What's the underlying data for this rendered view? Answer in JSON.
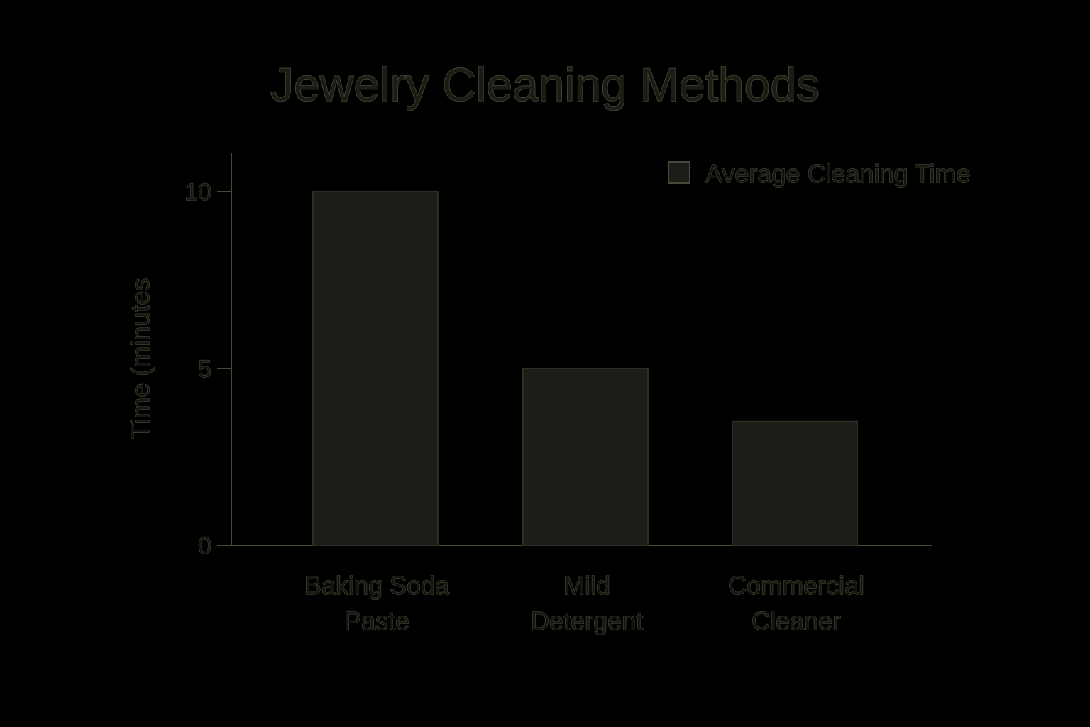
{
  "chart_data": {
    "type": "bar",
    "title": "Jewelry Cleaning Methods",
    "categories": [
      [
        "Baking Soda",
        "Paste"
      ],
      [
        "Mild",
        "Detergent"
      ],
      [
        "Commercial",
        "Cleaner"
      ]
    ],
    "series": [
      {
        "name": "Average Cleaning Time",
        "values": [
          10,
          5,
          3.5
        ]
      }
    ],
    "xlabel": "",
    "ylabel": "Time (minutes",
    "yticks": [
      0,
      5,
      10
    ],
    "ylim": [
      0,
      11.5
    ],
    "legend": "top-right",
    "grid": false,
    "colors": {
      "background": "#000000",
      "bar": "#1c1c18",
      "axis": "#4a4a34",
      "text_outline": "#4a4a36"
    }
  }
}
